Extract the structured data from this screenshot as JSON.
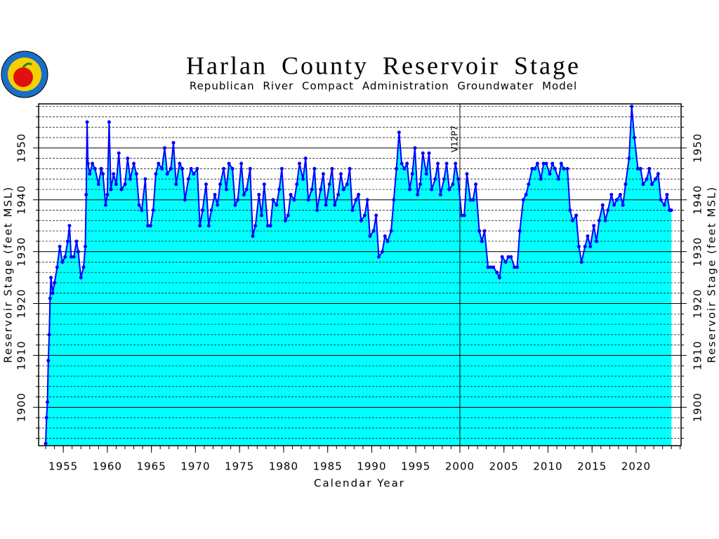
{
  "chart_data": {
    "type": "area",
    "title": "Harlan County Reservoir Stage",
    "subtitle": "Republican River Compact Administration Groundwater Model",
    "x_label": "Calendar Year",
    "y_label": "Reservoir Stage (feet MSL)",
    "annotation": {
      "text": "V12P7",
      "x": 2000
    },
    "color": "#0000ff",
    "area_color": "#00ffff",
    "grid": true,
    "minor_grid": true,
    "xlim": [
      1952.2,
      2025.1
    ],
    "xticks": [
      1955,
      1960,
      1965,
      1970,
      1975,
      1980,
      1985,
      1990,
      1995,
      2000,
      2005,
      2010,
      2015,
      2020
    ],
    "ylim": [
      1892.6,
      1958.5
    ],
    "yticks": [
      1900,
      1910,
      1920,
      1930,
      1940,
      1950
    ],
    "x": [
      1953.0,
      1953.1,
      1953.2,
      1953.3,
      1953.4,
      1953.5,
      1953.6,
      1953.8,
      1954.0,
      1954.3,
      1954.6,
      1954.9,
      1955.2,
      1955.5,
      1955.7,
      1955.9,
      1956.2,
      1956.5,
      1956.7,
      1957.0,
      1957.3,
      1957.5,
      1957.6,
      1957.7,
      1957.8,
      1958.0,
      1958.3,
      1958.6,
      1959.0,
      1959.3,
      1959.5,
      1959.8,
      1960.0,
      1960.2,
      1960.4,
      1960.7,
      1961.0,
      1961.3,
      1961.6,
      1962.0,
      1962.3,
      1962.6,
      1963.0,
      1963.3,
      1963.6,
      1963.9,
      1964.3,
      1964.6,
      1964.9,
      1965.2,
      1965.5,
      1965.8,
      1966.2,
      1966.5,
      1966.8,
      1967.2,
      1967.5,
      1967.8,
      1968.2,
      1968.5,
      1968.8,
      1969.2,
      1969.5,
      1969.8,
      1970.2,
      1970.5,
      1970.8,
      1971.2,
      1971.5,
      1971.8,
      1972.2,
      1972.5,
      1972.8,
      1973.2,
      1973.5,
      1973.8,
      1974.2,
      1974.5,
      1974.8,
      1975.2,
      1975.5,
      1975.8,
      1976.2,
      1976.5,
      1976.8,
      1977.2,
      1977.5,
      1977.8,
      1978.2,
      1978.5,
      1978.8,
      1979.2,
      1979.5,
      1979.8,
      1980.2,
      1980.5,
      1980.8,
      1981.2,
      1981.5,
      1981.8,
      1982.2,
      1982.5,
      1982.8,
      1983.2,
      1983.5,
      1983.8,
      1984.2,
      1984.5,
      1984.8,
      1985.2,
      1985.5,
      1985.8,
      1986.2,
      1986.5,
      1986.8,
      1987.2,
      1987.5,
      1987.8,
      1988.2,
      1988.5,
      1988.8,
      1989.2,
      1989.5,
      1989.8,
      1990.2,
      1990.5,
      1990.8,
      1991.2,
      1991.5,
      1991.8,
      1992.2,
      1992.5,
      1992.8,
      1993.1,
      1993.4,
      1993.7,
      1994.0,
      1994.3,
      1994.6,
      1994.9,
      1995.2,
      1995.5,
      1995.8,
      1996.2,
      1996.5,
      1996.8,
      1997.2,
      1997.5,
      1997.8,
      1998.2,
      1998.5,
      1998.8,
      1999.2,
      1999.5,
      1999.8,
      2000.2,
      2000.5,
      2000.8,
      2001.2,
      2001.5,
      2001.8,
      2002.2,
      2002.5,
      2002.8,
      2003.2,
      2003.5,
      2003.8,
      2004.2,
      2004.5,
      2004.8,
      2005.2,
      2005.5,
      2005.8,
      2006.2,
      2006.5,
      2006.8,
      2007.2,
      2007.5,
      2007.8,
      2008.2,
      2008.5,
      2008.8,
      2009.2,
      2009.5,
      2009.8,
      2010.2,
      2010.5,
      2010.8,
      2011.2,
      2011.5,
      2011.8,
      2012.2,
      2012.5,
      2012.8,
      2013.2,
      2013.5,
      2013.8,
      2014.2,
      2014.5,
      2014.8,
      2015.2,
      2015.5,
      2015.8,
      2016.2,
      2016.5,
      2016.8,
      2017.2,
      2017.5,
      2017.8,
      2018.2,
      2018.5,
      2018.8,
      2019.2,
      2019.5,
      2019.8,
      2020.2,
      2020.5,
      2020.8,
      2021.2,
      2021.5,
      2021.8,
      2022.2,
      2022.5,
      2022.8,
      2023.2,
      2023.5,
      2023.8,
      2024.0
    ],
    "values": [
      1893,
      1898,
      1901,
      1909,
      1914,
      1921,
      1925,
      1922,
      1924,
      1927,
      1931,
      1928,
      1929,
      1932,
      1935,
      1929,
      1929,
      1932,
      1930,
      1925,
      1927,
      1931,
      1941,
      1955,
      1947,
      1945,
      1947,
      1946,
      1943,
      1946,
      1945,
      1939,
      1941,
      1955,
      1942,
      1945,
      1943,
      1949,
      1942,
      1943,
      1948,
      1944,
      1947,
      1945,
      1939,
      1938,
      1944,
      1935,
      1935,
      1938,
      1945,
      1947,
      1946,
      1950,
      1945,
      1946,
      1951,
      1943,
      1947,
      1946,
      1940,
      1944,
      1946,
      1945,
      1946,
      1935,
      1938,
      1943,
      1935,
      1938,
      1941,
      1939,
      1943,
      1946,
      1942,
      1947,
      1946,
      1939,
      1940,
      1947,
      1941,
      1942,
      1946,
      1933,
      1935,
      1941,
      1937,
      1943,
      1935,
      1935,
      1940,
      1939,
      1942,
      1946,
      1936,
      1937,
      1941,
      1940,
      1943,
      1947,
      1944,
      1948,
      1940,
      1942,
      1946,
      1938,
      1942,
      1945,
      1939,
      1943,
      1946,
      1939,
      1941,
      1945,
      1942,
      1943,
      1946,
      1938,
      1940,
      1941,
      1936,
      1937,
      1940,
      1933,
      1934,
      1937,
      1929,
      1930,
      1933,
      1932,
      1934,
      1940,
      1946,
      1953,
      1947,
      1946,
      1947,
      1942,
      1945,
      1950,
      1941,
      1943,
      1949,
      1945,
      1949,
      1942,
      1944,
      1947,
      1941,
      1944,
      1947,
      1942,
      1943,
      1947,
      1944,
      1937,
      1937,
      1945,
      1940,
      1940,
      1943,
      1934,
      1932,
      1934,
      1927,
      1927,
      1927,
      1926,
      1925,
      1929,
      1928,
      1929,
      1929,
      1927,
      1927,
      1934,
      1940,
      1941,
      1943,
      1946,
      1946,
      1947,
      1944,
      1947,
      1947,
      1945,
      1947,
      1946,
      1944,
      1947,
      1946,
      1946,
      1938,
      1936,
      1937,
      1931,
      1928,
      1931,
      1933,
      1931,
      1935,
      1932,
      1936,
      1939,
      1936,
      1938,
      1941,
      1939,
      1940,
      1941,
      1939,
      1943,
      1948,
      1958,
      1952,
      1946,
      1946,
      1943,
      1944,
      1946,
      1943,
      1944,
      1945,
      1940,
      1939,
      1941,
      1938,
      1938
    ]
  }
}
